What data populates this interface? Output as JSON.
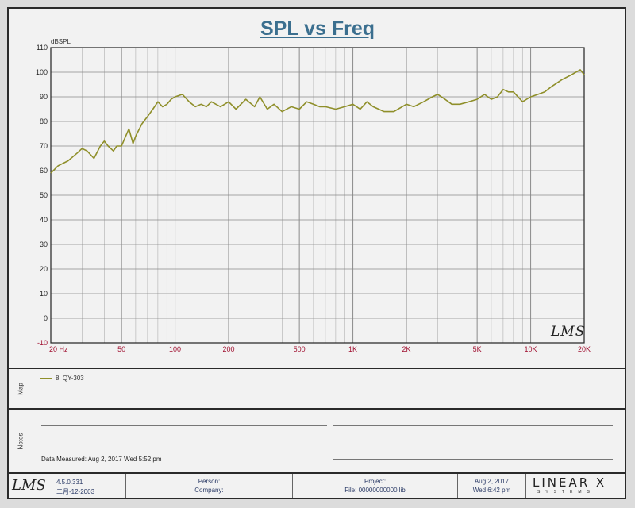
{
  "chart_data": {
    "type": "line",
    "title": "SPL vs Freq",
    "ylabel": "dBSPL",
    "xscale": "log",
    "xlim": [
      20,
      20000
    ],
    "ylim": [
      -10,
      110
    ],
    "yticks": [
      110,
      100,
      90,
      80,
      70,
      60,
      50,
      40,
      30,
      20,
      10,
      0,
      -10
    ],
    "xtick_values": [
      20,
      50,
      100,
      200,
      500,
      1000,
      2000,
      5000,
      10000,
      20000
    ],
    "xtick_labels": [
      "20 Hz",
      "50",
      "100",
      "200",
      "500",
      "1K",
      "2K",
      "5K",
      "10K",
      "20K"
    ],
    "grid": true,
    "series": [
      {
        "name": "8: QY-303",
        "color": "#8f8f2a",
        "x": [
          20,
          22,
          25,
          28,
          30,
          32,
          35,
          38,
          40,
          42,
          45,
          47,
          50,
          52,
          55,
          58,
          60,
          65,
          70,
          75,
          80,
          85,
          90,
          95,
          100,
          110,
          120,
          130,
          140,
          150,
          160,
          180,
          200,
          220,
          250,
          280,
          300,
          330,
          360,
          400,
          450,
          500,
          550,
          600,
          650,
          700,
          800,
          900,
          1000,
          1100,
          1200,
          1300,
          1500,
          1700,
          2000,
          2200,
          2500,
          2800,
          3000,
          3300,
          3600,
          4000,
          4500,
          5000,
          5500,
          6000,
          6500,
          7000,
          7500,
          8000,
          9000,
          10000,
          11000,
          12000,
          13000,
          15000,
          17000,
          19000,
          20000
        ],
        "y": [
          59,
          62,
          64,
          67,
          69,
          68,
          65,
          70,
          72,
          70,
          68,
          70,
          70,
          73,
          77,
          71,
          74,
          79,
          82,
          85,
          88,
          86,
          87,
          89,
          90,
          91,
          88,
          86,
          87,
          86,
          88,
          86,
          88,
          85,
          89,
          86,
          90,
          85,
          87,
          84,
          86,
          85,
          88,
          87,
          86,
          86,
          85,
          86,
          87,
          85,
          88,
          86,
          84,
          84,
          87,
          86,
          88,
          90,
          91,
          89,
          87,
          87,
          88,
          89,
          91,
          89,
          90,
          93,
          92,
          92,
          88,
          90,
          91,
          92,
          94,
          97,
          99,
          101,
          99
        ]
      }
    ]
  },
  "map": {
    "side_label": "Map",
    "legend_entry": "8: QY-303"
  },
  "notes": {
    "side_label": "Notes",
    "data_measured": "Data Measured: Aug  2, 2017  Wed  5:52 pm"
  },
  "watermark": "LMS",
  "footer": {
    "version": "4.5.0.331",
    "build_date": "二月-12-2003",
    "person_label": "Person:",
    "company_label": "Company:",
    "project_label": "Project:",
    "file_label": "File: 00000000000.lib",
    "date": "Aug  2, 2017",
    "day_time": "Wed  6:42 pm",
    "brand": "LINEAR X",
    "brand_sub": "SYSTEMS"
  }
}
